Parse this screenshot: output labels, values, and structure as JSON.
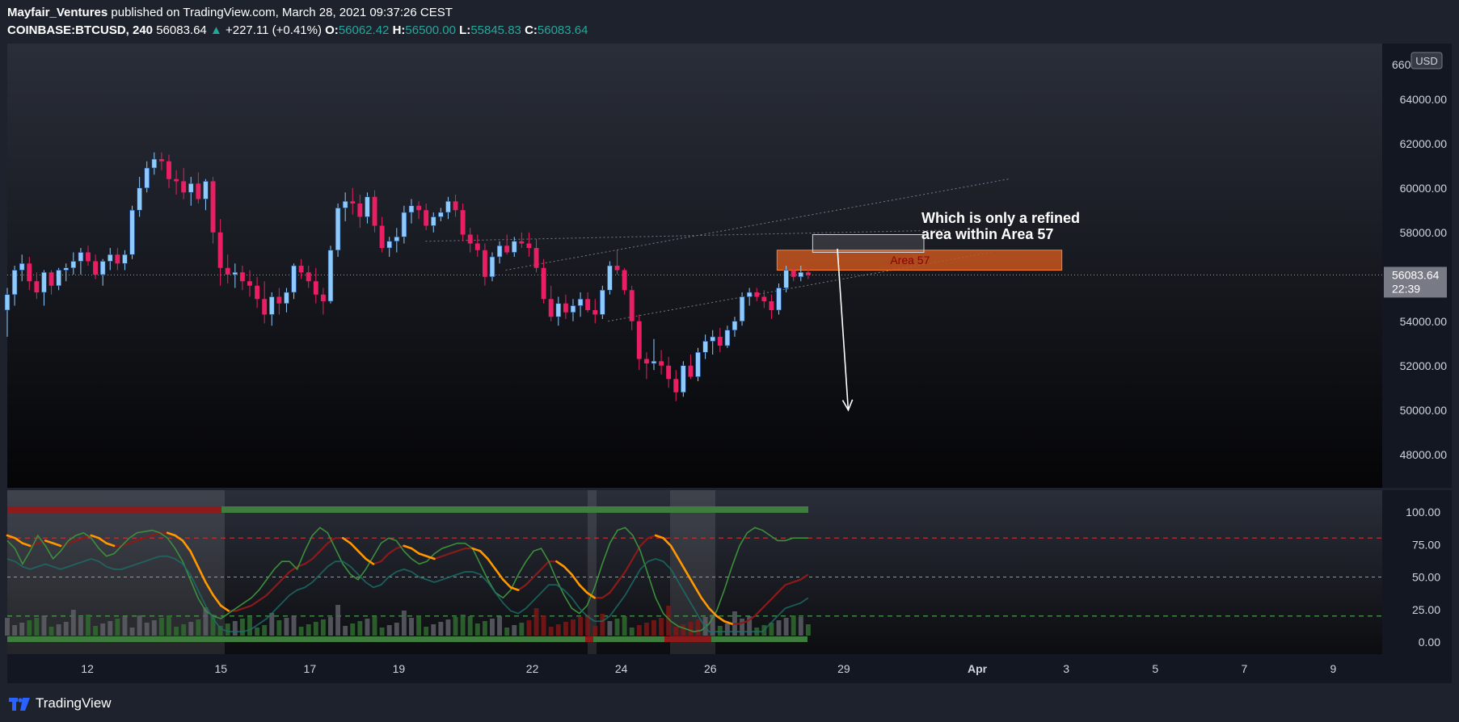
{
  "header": {
    "author": "Mayfair_Ventures",
    "published": "published on TradingView.com, March 28, 2021 09:37:26 CEST",
    "symbol": "COINBASE:BTCUSD, 240",
    "last": "56083.64",
    "arrow": "▲",
    "change": "+227.11 (+0.41%)",
    "o_label": "O:",
    "o": "56062.42",
    "h_label": "H:",
    "h": "56500.00",
    "l_label": "L:",
    "l": "55845.83",
    "c_label": "C:",
    "c": "56083.64"
  },
  "footer": {
    "brand": "TradingView",
    "logo_icon": "tradingview-logo-icon"
  },
  "colors": {
    "up": "#90caf9",
    "down": "#e91e63",
    "zone": "#c7561e",
    "oversold": "#4caf50",
    "overbought": "#d32f2f"
  },
  "chart_data": {
    "type": "candlestick",
    "currency": "USD",
    "timeframe": "240",
    "y_range": [
      46500,
      66500
    ],
    "y_ticks": [
      "64000.00",
      "62000.00",
      "60000.00",
      "58000.00",
      "56000.00",
      "54000.00",
      "52000.00",
      "50000.00",
      "48000.00"
    ],
    "y_tick_values": [
      64000,
      62000,
      60000,
      58000,
      56000,
      54000,
      52000,
      50000,
      48000
    ],
    "last_price_label": "56083.64",
    "countdown_label": "22:39",
    "top_cut_label": "66000.00",
    "x_ticks": [
      "12",
      "15",
      "17",
      "19",
      "22",
      "24",
      "26",
      "29",
      "Apr",
      "3",
      "5",
      "7",
      "9"
    ],
    "x_tick_days": [
      12,
      15,
      17,
      19,
      22,
      24,
      26,
      29,
      32,
      34,
      36,
      38,
      40
    ],
    "x_range_days": [
      10.2,
      41.1
    ],
    "candles": [
      [
        54500,
        55500,
        53300,
        55200
      ],
      [
        55200,
        56500,
        54700,
        56300
      ],
      [
        56300,
        57000,
        55800,
        56600
      ],
      [
        56600,
        56900,
        55400,
        55800
      ],
      [
        55800,
        56200,
        55000,
        55300
      ],
      [
        55300,
        56300,
        54700,
        56200
      ],
      [
        56200,
        56300,
        55200,
        55600
      ],
      [
        55600,
        56400,
        55400,
        56300
      ],
      [
        56300,
        56600,
        55800,
        56400
      ],
      [
        56400,
        57100,
        56100,
        56700
      ],
      [
        56700,
        57300,
        56100,
        57100
      ],
      [
        57100,
        57400,
        56500,
        56700
      ],
      [
        56700,
        57000,
        55900,
        56100
      ],
      [
        56100,
        56800,
        55600,
        56700
      ],
      [
        56700,
        57300,
        56300,
        57000
      ],
      [
        57000,
        57300,
        56300,
        56600
      ],
      [
        56600,
        57200,
        56300,
        57000
      ],
      [
        57000,
        59200,
        56800,
        59000
      ],
      [
        59000,
        60500,
        58700,
        60000
      ],
      [
        60000,
        61200,
        59800,
        60900
      ],
      [
        60900,
        61600,
        60600,
        61300
      ],
      [
        61300,
        61600,
        60800,
        61200
      ],
      [
        61200,
        61500,
        60000,
        60400
      ],
      [
        60400,
        60800,
        59700,
        60300
      ],
      [
        60300,
        60900,
        59500,
        59800
      ],
      [
        59800,
        60500,
        59200,
        60200
      ],
      [
        60200,
        60700,
        59300,
        59500
      ],
      [
        59500,
        60400,
        59000,
        60300
      ],
      [
        60300,
        60500,
        57500,
        58000
      ],
      [
        58000,
        58600,
        55600,
        56400
      ],
      [
        56400,
        57000,
        55700,
        56100
      ],
      [
        56100,
        56600,
        55500,
        56200
      ],
      [
        56200,
        56500,
        55400,
        55800
      ],
      [
        55800,
        56300,
        55100,
        55600
      ],
      [
        55600,
        56000,
        54600,
        55000
      ],
      [
        55000,
        55800,
        53900,
        54300
      ],
      [
        54300,
        55300,
        53800,
        55100
      ],
      [
        55100,
        55500,
        54300,
        54800
      ],
      [
        54800,
        55500,
        54400,
        55300
      ],
      [
        55300,
        56600,
        55000,
        56500
      ],
      [
        56500,
        56800,
        55900,
        56200
      ],
      [
        56200,
        56500,
        55500,
        55800
      ],
      [
        55800,
        56400,
        54800,
        55200
      ],
      [
        55200,
        55500,
        54300,
        54900
      ],
      [
        54900,
        57400,
        54800,
        57200
      ],
      [
        57200,
        59300,
        56900,
        59100
      ],
      [
        59100,
        59800,
        58500,
        59400
      ],
      [
        59400,
        60000,
        58800,
        59300
      ],
      [
        59300,
        59700,
        58200,
        58700
      ],
      [
        58700,
        59800,
        58400,
        59600
      ],
      [
        59600,
        59900,
        58000,
        58300
      ],
      [
        58300,
        58700,
        57100,
        57300
      ],
      [
        57300,
        57800,
        56900,
        57600
      ],
      [
        57600,
        58200,
        57100,
        57800
      ],
      [
        57800,
        59200,
        57500,
        58900
      ],
      [
        58900,
        59500,
        58400,
        59200
      ],
      [
        59200,
        59400,
        58600,
        59000
      ],
      [
        59000,
        59300,
        58100,
        58300
      ],
      [
        58300,
        58900,
        58000,
        58700
      ],
      [
        58700,
        59100,
        58500,
        58900
      ],
      [
        58900,
        59600,
        58600,
        59400
      ],
      [
        59400,
        59700,
        58700,
        59000
      ],
      [
        59000,
        59300,
        57600,
        57900
      ],
      [
        57900,
        58200,
        57100,
        57500
      ],
      [
        57500,
        57900,
        56900,
        57200
      ],
      [
        57200,
        57500,
        55600,
        56000
      ],
      [
        56000,
        57100,
        55800,
        56900
      ],
      [
        56900,
        57600,
        56600,
        57400
      ],
      [
        57400,
        57900,
        57000,
        57100
      ],
      [
        57100,
        57800,
        56900,
        57600
      ],
      [
        57600,
        58000,
        57300,
        57500
      ],
      [
        57500,
        58000,
        56900,
        57300
      ],
      [
        57300,
        57700,
        56200,
        56400
      ],
      [
        56400,
        56800,
        54800,
        55000
      ],
      [
        55000,
        55600,
        54000,
        54200
      ],
      [
        54200,
        55100,
        53800,
        54800
      ],
      [
        54800,
        55200,
        54100,
        54400
      ],
      [
        54400,
        55000,
        54000,
        54700
      ],
      [
        54700,
        55300,
        54200,
        55000
      ],
      [
        55000,
        55300,
        54400,
        54500
      ],
      [
        54500,
        55000,
        53900,
        54300
      ],
      [
        54300,
        55600,
        54100,
        55400
      ],
      [
        55400,
        56700,
        55200,
        56500
      ],
      [
        56500,
        57200,
        56100,
        56300
      ],
      [
        56300,
        56400,
        55200,
        55400
      ],
      [
        55400,
        55600,
        53600,
        54000
      ],
      [
        54000,
        54300,
        51800,
        52300
      ],
      [
        52300,
        52600,
        51400,
        52100
      ],
      [
        52100,
        53200,
        51800,
        52200
      ],
      [
        52200,
        52700,
        51600,
        52000
      ],
      [
        52000,
        52400,
        51000,
        51400
      ],
      [
        51400,
        51800,
        50400,
        50800
      ],
      [
        50800,
        52200,
        50600,
        52000
      ],
      [
        52000,
        52500,
        51400,
        51500
      ],
      [
        51500,
        52800,
        51300,
        52600
      ],
      [
        52600,
        53400,
        52300,
        53100
      ],
      [
        53100,
        53600,
        52500,
        53300
      ],
      [
        53300,
        53700,
        52600,
        52900
      ],
      [
        52900,
        53800,
        52800,
        53600
      ],
      [
        53600,
        54200,
        53300,
        54000
      ],
      [
        54000,
        55300,
        53800,
        55100
      ],
      [
        55100,
        55500,
        54700,
        55300
      ],
      [
        55300,
        55500,
        54900,
        55100
      ],
      [
        55100,
        55400,
        54600,
        54900
      ],
      [
        54900,
        55200,
        54100,
        54500
      ],
      [
        54500,
        55700,
        54300,
        55500
      ],
      [
        55500,
        56500,
        55300,
        56300
      ],
      [
        56300,
        56500,
        55800,
        56000
      ],
      [
        56000,
        56500,
        55800,
        56200
      ],
      [
        56200,
        56400,
        55900,
        56083.64
      ]
    ],
    "price_zones": [
      {
        "label": "Area 57",
        "y_top": 57200,
        "y_bottom": 56300
      },
      {
        "label": "",
        "y_top": 57900,
        "y_bottom": 57100
      }
    ],
    "annotation": {
      "lines": [
        "Which is only a refined",
        "area within Area 57"
      ],
      "arrow_to": {
        "day": 29.1,
        "price": 50000
      }
    },
    "channel_lines": [
      {
        "from": [
          21.4,
          56300
        ],
        "to": [
          32.7,
          60400
        ]
      },
      {
        "from": [
          19.6,
          57600
        ],
        "to": [
          31.3,
          58100
        ]
      },
      {
        "from": [
          23.7,
          54000
        ],
        "to": [
          32.3,
          57100
        ]
      }
    ],
    "oscillator": {
      "y_ticks": [
        "100.00",
        "75.00",
        "50.00",
        "25.00",
        "0.00"
      ],
      "y_tick_values": [
        100,
        75,
        50,
        25,
        0
      ],
      "levels": {
        "overbought": 80,
        "mid": 50,
        "oversold": 20
      },
      "fast": [
        78,
        72,
        60,
        70,
        82,
        74,
        64,
        70,
        78,
        82,
        84,
        80,
        72,
        66,
        68,
        74,
        80,
        84,
        85,
        86,
        84,
        80,
        72,
        62,
        48,
        34,
        24,
        20,
        18,
        22,
        26,
        30,
        34,
        40,
        48,
        56,
        62,
        62,
        56,
        70,
        82,
        88,
        84,
        72,
        60,
        52,
        48,
        56,
        66,
        76,
        80,
        78,
        70,
        64,
        60,
        62,
        68,
        72,
        74,
        76,
        76,
        72,
        60,
        48,
        38,
        34,
        40,
        52,
        62,
        70,
        72,
        62,
        48,
        36,
        26,
        22,
        28,
        42,
        60,
        76,
        86,
        88,
        82,
        70,
        52,
        34,
        22,
        16,
        12,
        10,
        8,
        9,
        14,
        24,
        40,
        58,
        74,
        84,
        88,
        86,
        82,
        78,
        78,
        80,
        80,
        80
      ],
      "slow": [
        82,
        80,
        76,
        74,
        76,
        78,
        76,
        74,
        76,
        78,
        80,
        82,
        80,
        76,
        74,
        74,
        76,
        78,
        80,
        82,
        84,
        84,
        82,
        78,
        70,
        58,
        46,
        36,
        28,
        24,
        24,
        26,
        28,
        32,
        36,
        42,
        48,
        54,
        58,
        60,
        64,
        70,
        76,
        80,
        80,
        76,
        70,
        64,
        60,
        62,
        68,
        72,
        74,
        72,
        68,
        66,
        64,
        66,
        68,
        70,
        72,
        72,
        70,
        64,
        56,
        48,
        42,
        40,
        44,
        50,
        56,
        62,
        62,
        58,
        52,
        44,
        38,
        34,
        34,
        38,
        46,
        54,
        64,
        74,
        80,
        82,
        80,
        74,
        64,
        54,
        44,
        34,
        26,
        20,
        16,
        14,
        14,
        16,
        20,
        26,
        32,
        38,
        44,
        46,
        48,
        52
      ]
    }
  }
}
